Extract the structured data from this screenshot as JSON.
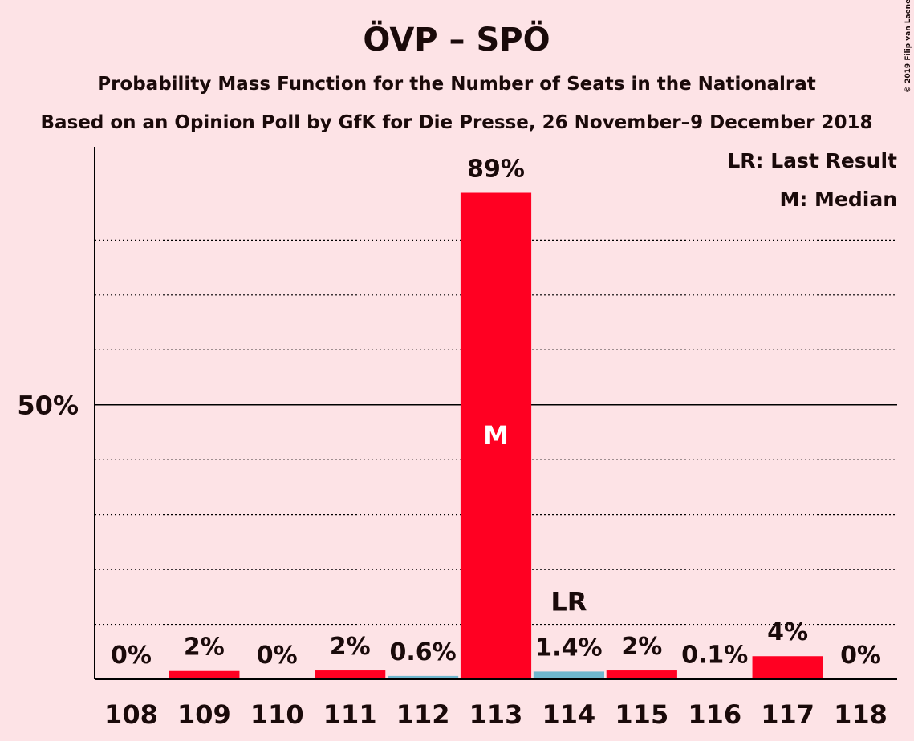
{
  "chart_data": {
    "type": "bar",
    "title": "ÖVP – SPÖ",
    "subtitle": "Probability Mass Function for the Number of Seats in the Nationalrat",
    "subtitle2": "Based on an Opinion Poll by GfK for Die Presse, 26 November–9 December 2018",
    "copyright": "© 2019 Filip van Laenen",
    "categories": [
      "108",
      "109",
      "110",
      "111",
      "112",
      "113",
      "114",
      "115",
      "116",
      "117",
      "118"
    ],
    "values": [
      0,
      1.5,
      0,
      1.6,
      0.6,
      88.6,
      1.4,
      1.6,
      0.1,
      4.2,
      0
    ],
    "value_labels": [
      "0%",
      "2%",
      "0%",
      "2%",
      "0.6%",
      "89%",
      "1.4%",
      "2%",
      "0.1%",
      "4%",
      "0%"
    ],
    "colors": [
      "#ff0022",
      "#ff0022",
      "#ff0022",
      "#ff0022",
      "#6fb7ce",
      "#ff0022",
      "#6fb7ce",
      "#ff0022",
      "#ff0022",
      "#ff0022",
      "#ff0022"
    ],
    "ylim": [
      0,
      97
    ],
    "yticks": [
      {
        "value": 50,
        "label": "50%"
      }
    ],
    "minor_gridlines": [
      10,
      20,
      30,
      40,
      60,
      70,
      80
    ],
    "annotations": [
      {
        "text": "M",
        "category": "113"
      },
      {
        "text": "LR",
        "category": "114"
      }
    ],
    "legend": [
      "LR: Last Result",
      "M: Median"
    ],
    "legend_position": "top-right"
  }
}
